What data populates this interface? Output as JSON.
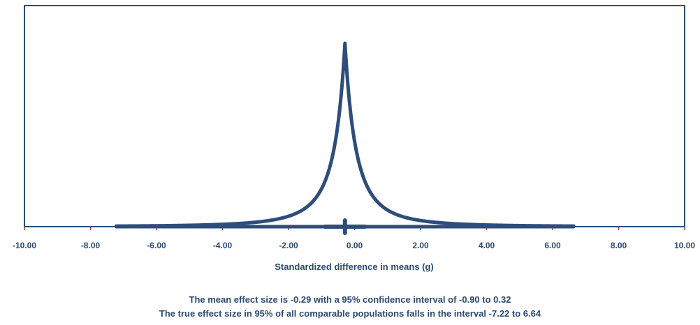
{
  "chart_data": {
    "type": "line",
    "title": "",
    "xlabel": "Standardized difference in means (g)",
    "ylabel": "",
    "xlim": [
      -10,
      10
    ],
    "x_ticks": [
      -10,
      -8,
      -6,
      -4,
      -2,
      0,
      2,
      4,
      6,
      8,
      10
    ],
    "x_tick_labels": [
      "-10.00",
      "-8.00",
      "-6.00",
      "-4.00",
      "-2.00",
      "0.00",
      "2.00",
      "4.00",
      "6.00",
      "8.00",
      "10.00"
    ],
    "grid": false,
    "legend": "none",
    "distribution": {
      "shape": "peaked density",
      "center": -0.29,
      "scale": 0.85,
      "range": [
        -7.22,
        6.64
      ]
    },
    "mean_effect": -0.29,
    "confidence_interval": [
      -0.9,
      0.32
    ],
    "prediction_interval": [
      -7.22,
      6.64
    ],
    "colors": {
      "series": "#2e4d7b",
      "frame": "#2e4d7b",
      "axis": "#2e4d7b",
      "tick_marks": "#c0392b",
      "text": "#2c4a73"
    }
  },
  "captions": {
    "line1": "The mean effect size is -0.29 with a 95% confidence interval of -0.90 to 0.32",
    "line2": "The true effect size in 95% of all comparable populations falls in the interval -7.22 to 6.64"
  }
}
